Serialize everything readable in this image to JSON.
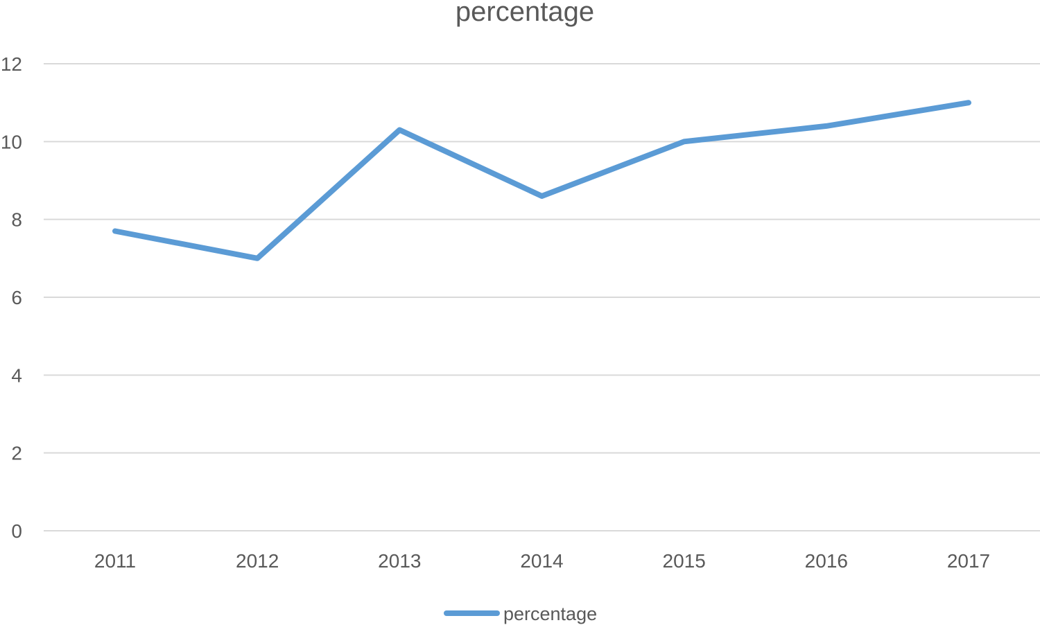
{
  "chart_data": {
    "type": "line",
    "title": "percentage",
    "xlabel": "",
    "ylabel": "",
    "categories": [
      "2011",
      "2012",
      "2013",
      "2014",
      "2015",
      "2016",
      "2017"
    ],
    "series": [
      {
        "name": "percentage",
        "values": [
          7.7,
          7.0,
          10.3,
          8.6,
          10.0,
          10.4,
          11.0
        ],
        "color": "#5b9bd5"
      }
    ],
    "ylim": [
      0,
      12
    ],
    "yticks": [
      0,
      2,
      4,
      6,
      8,
      10,
      12
    ],
    "grid": true,
    "legend": "bottom",
    "colors": {
      "grid": "#d9d9d9",
      "text": "#595959"
    }
  }
}
